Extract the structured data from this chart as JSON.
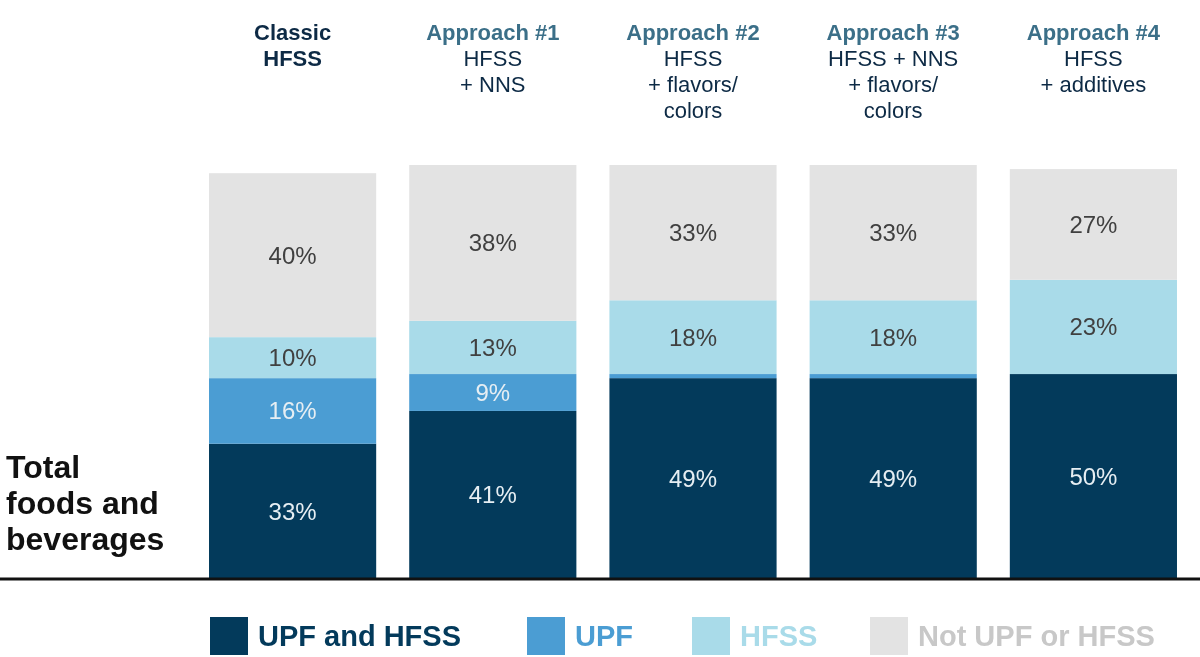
{
  "chart_data": {
    "type": "bar",
    "stacked": true,
    "ylabel": "Total foods and beverages",
    "categories": [
      "Classic\nHFSS",
      "Approach #1\nHFSS\n+ NNS",
      "Approach #2\nHFSS\n+ flavors/\ncolors",
      "Approach #3\nHFSS + NNS\n+ flavors/\ncolors",
      "Approach #4\nHFSS\n+ additives"
    ],
    "series": [
      {
        "name": "UPF and HFSS",
        "color": "#033a5b",
        "values": [
          33,
          41,
          49,
          49,
          50
        ],
        "value_labels": [
          "33%",
          "41%",
          "49%",
          "49%",
          "50%"
        ]
      },
      {
        "name": "UPF",
        "color": "#4b9dd3",
        "values": [
          16,
          9,
          1,
          1,
          0
        ],
        "value_labels": [
          "16%",
          "9%",
          null,
          null,
          null
        ]
      },
      {
        "name": "HFSS",
        "color": "#a9dbe9",
        "values": [
          10,
          13,
          18,
          18,
          23
        ],
        "value_labels": [
          "10%",
          "13%",
          "18%",
          "18%",
          "23%"
        ]
      },
      {
        "name": "Not UPF or HFSS",
        "color": "#e3e3e3",
        "values": [
          40,
          38,
          33,
          33,
          27
        ],
        "value_labels": [
          "40%",
          "38%",
          "33%",
          "33%",
          "27%"
        ]
      }
    ],
    "legend": "bottom"
  }
}
